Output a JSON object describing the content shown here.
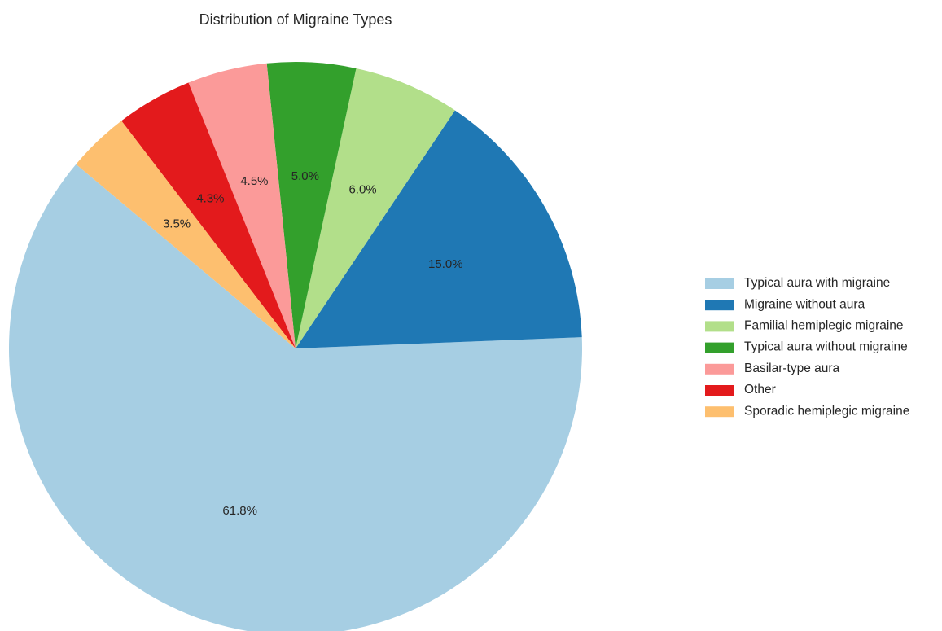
{
  "chart_data": {
    "type": "pie",
    "title": "Distribution of Migraine Types",
    "categories": [
      "Typical aura with migraine",
      "Migraine without aura",
      "Familial hemiplegic migraine",
      "Typical aura without migraine",
      "Basilar-type aura",
      "Other",
      "Sporadic hemiplegic migraine"
    ],
    "values": [
      61.8,
      15.0,
      6.0,
      5.0,
      4.5,
      4.3,
      3.5
    ],
    "value_labels": [
      "61.8%",
      "15.0%",
      "6.0%",
      "5.0%",
      "4.5%",
      "4.3%",
      "3.5%"
    ],
    "colors": [
      "#a6cee3",
      "#1f78b4",
      "#b2df8a",
      "#33a02c",
      "#fb9a99",
      "#e31a1c",
      "#fdbf6f"
    ],
    "legend": "right"
  }
}
